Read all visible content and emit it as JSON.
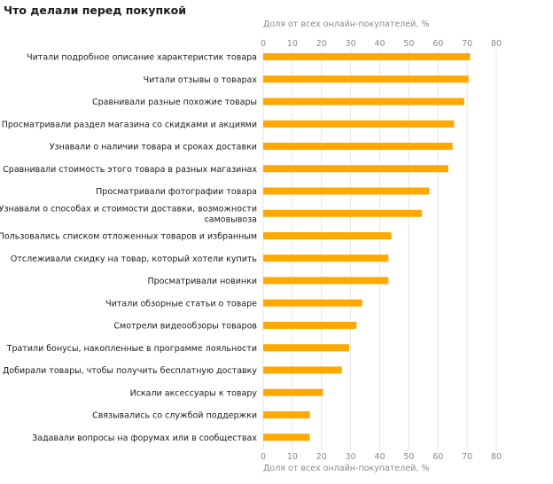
{
  "chart_data": {
    "type": "bar",
    "orientation": "horizontal",
    "title": "Что делали перед покупкой",
    "xlabel": "Доля от всех онлайн-покупателей, %",
    "xlim": [
      0,
      80
    ],
    "xticks": [
      0,
      10,
      20,
      30,
      40,
      50,
      60,
      70,
      80
    ],
    "grid": true,
    "bar_color": "#FFA800",
    "categories": [
      [
        "Читали подробное описание характеристик товара"
      ],
      [
        "Читали отзывы о товарах"
      ],
      [
        "Сравнивали разные похожие товары"
      ],
      [
        "Просматривали раздел магазина со скидками и акциями"
      ],
      [
        "Узнавали о наличии товара и сроках доставки"
      ],
      [
        "Сравнивали стоимость этого товара в разных магазинах"
      ],
      [
        "Просматривали фотографии товара"
      ],
      [
        "Узнавали о способах и стоимости доставки, возможности",
        "самовывоза"
      ],
      [
        "Пользовались списком отложенных товаров и избранным"
      ],
      [
        "Отслеживали скидку на товар, который хотели купить"
      ],
      [
        "Просматривали новинки"
      ],
      [
        "Читали обзорные статьи о товаре"
      ],
      [
        "Смотрели видеообзоры товаров"
      ],
      [
        "Тратили бонусы, накопленные в программе лояльности"
      ],
      [
        "Добирали товары, чтобы получить бесплатную доставку"
      ],
      [
        "Искали аксессуары к товару"
      ],
      [
        "Связывались со службой поддержки"
      ],
      [
        "Задавали вопросы на форумах или в сообществах"
      ]
    ],
    "values": [
      71,
      70.5,
      69,
      65.5,
      65,
      63.5,
      57,
      54.5,
      44,
      43,
      43,
      34,
      32,
      29.5,
      27,
      20.5,
      16,
      16
    ]
  }
}
